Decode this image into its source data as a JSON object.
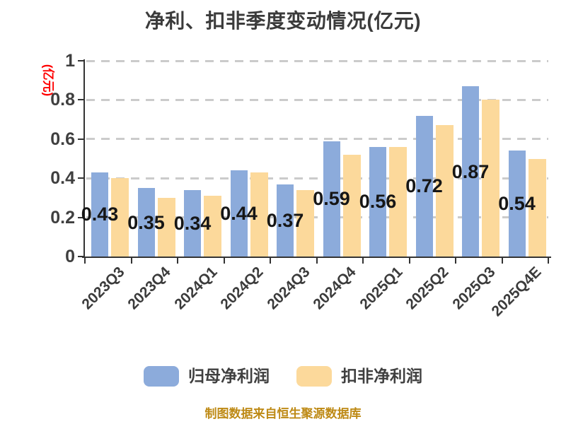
{
  "title": "净利、扣非季度变动情况(亿元)",
  "y_axis": {
    "unit_label": "(亿元)",
    "unit_label_color": "#ff0000",
    "tick_labels": [
      "0",
      "0.2",
      "0.4",
      "0.6",
      "0.8",
      "1"
    ]
  },
  "chart_data": {
    "type": "bar",
    "title": "净利、扣非季度变动情况(亿元)",
    "categories": [
      "2023Q3",
      "2023Q4",
      "2024Q1",
      "2024Q2",
      "2024Q3",
      "2024Q4",
      "2025Q1",
      "2025Q2",
      "2025Q3",
      "2025Q4E"
    ],
    "series": [
      {
        "name": "归母净利润",
        "color": "#8cabdb",
        "values": [
          0.43,
          0.35,
          0.34,
          0.44,
          0.37,
          0.59,
          0.56,
          0.72,
          0.87,
          0.54
        ],
        "data_labels": [
          "0.43",
          "0.35",
          "0.34",
          "0.44",
          "0.37",
          "0.59",
          "0.56",
          "0.72",
          "0.87",
          "0.54"
        ]
      },
      {
        "name": "扣非净利润",
        "color": "#fcd99b",
        "values": [
          0.4,
          0.3,
          0.31,
          0.43,
          0.34,
          0.52,
          0.56,
          0.67,
          0.8,
          0.5
        ],
        "data_labels": []
      }
    ],
    "ylabel": "(亿元)",
    "ylim": [
      0,
      1
    ],
    "yticks": [
      0,
      0.2,
      0.4,
      0.6,
      0.8,
      1
    ],
    "grid": "horizontal-dashed",
    "legend_position": "bottom"
  },
  "legend": {
    "items": [
      {
        "label": "归母净利润",
        "color": "#8cabdb"
      },
      {
        "label": "扣非净利润",
        "color": "#fcd99b"
      }
    ]
  },
  "footer": {
    "text": "制图数据来自恒生聚源数据库",
    "color": "#be8a15"
  },
  "colors": {
    "axis": "#333333",
    "grid": "#cbcbcb",
    "title_text": "#3b3b3b",
    "tick_text": "#3f3f3f",
    "value_label_text": "#161616",
    "series_blue": "#8cabdb",
    "series_yellow": "#fcd99b"
  }
}
